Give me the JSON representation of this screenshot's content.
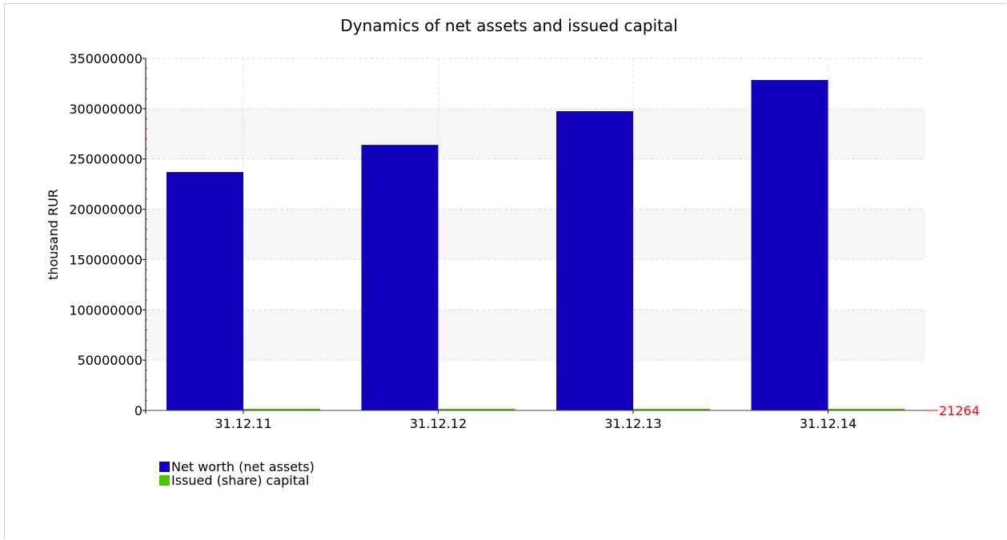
{
  "chart_data": {
    "type": "bar",
    "title": "Dynamics of net assets and issued capital",
    "xlabel": "",
    "ylabel": "thousand RUR",
    "categories": [
      "31.12.11",
      "31.12.12",
      "31.12.13",
      "31.12.14"
    ],
    "series": [
      {
        "name": "Net worth (net assets)",
        "color": "#1200bd",
        "values": [
          237000000,
          264000000,
          297500000,
          328500000
        ]
      },
      {
        "name": "Issued (share) capital",
        "color": "#4cc400",
        "values": [
          21264,
          21264,
          21264,
          21264
        ]
      }
    ],
    "ylim": [
      0,
      350000000
    ],
    "yticks": [
      "0",
      "50000000",
      "100000000",
      "150000000",
      "200000000",
      "250000000",
      "300000000",
      "350000000"
    ],
    "ytick_values": [
      0,
      50000000,
      100000000,
      150000000,
      200000000,
      250000000,
      300000000,
      350000000
    ],
    "marker": {
      "label": "21264",
      "value": 21264,
      "color": "#ff0000"
    },
    "grid": true,
    "legend": "bottom-left"
  }
}
